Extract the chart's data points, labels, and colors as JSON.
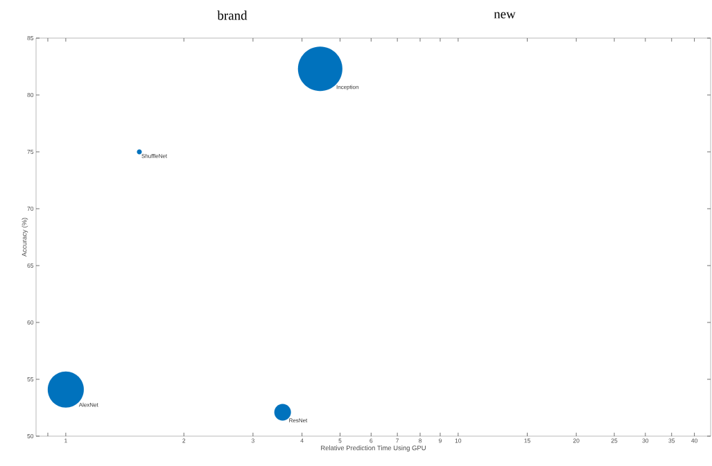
{
  "chart_data": {
    "type": "bubble",
    "xlabel": "Relative Prediction Time Using GPU",
    "ylabel": "Accuracy (%)",
    "x": [
      1,
      1.54,
      3.57,
      4.45
    ],
    "values": [
      54.1,
      75.0,
      52.1,
      82.3
    ],
    "sizes": [
      0.66,
      0.012,
      0.14,
      1
    ],
    "color": "#0072bd",
    "log": "x",
    "xlim": [
      0.84,
      44
    ],
    "ylim": [
      50,
      85
    ],
    "xticks": [
      {
        "value": 0.9,
        "label": null
      },
      1,
      2,
      3,
      4,
      5,
      6,
      7,
      8,
      9,
      10,
      15,
      20,
      25,
      30,
      35,
      40
    ],
    "yticks": [
      50,
      55,
      60,
      65,
      70,
      75,
      80,
      85
    ],
    "grid": false,
    "annotations": [
      "brand",
      "new",
      "AlexNet",
      "ShuffleNet",
      "ResNet",
      "Inception"
    ]
  }
}
